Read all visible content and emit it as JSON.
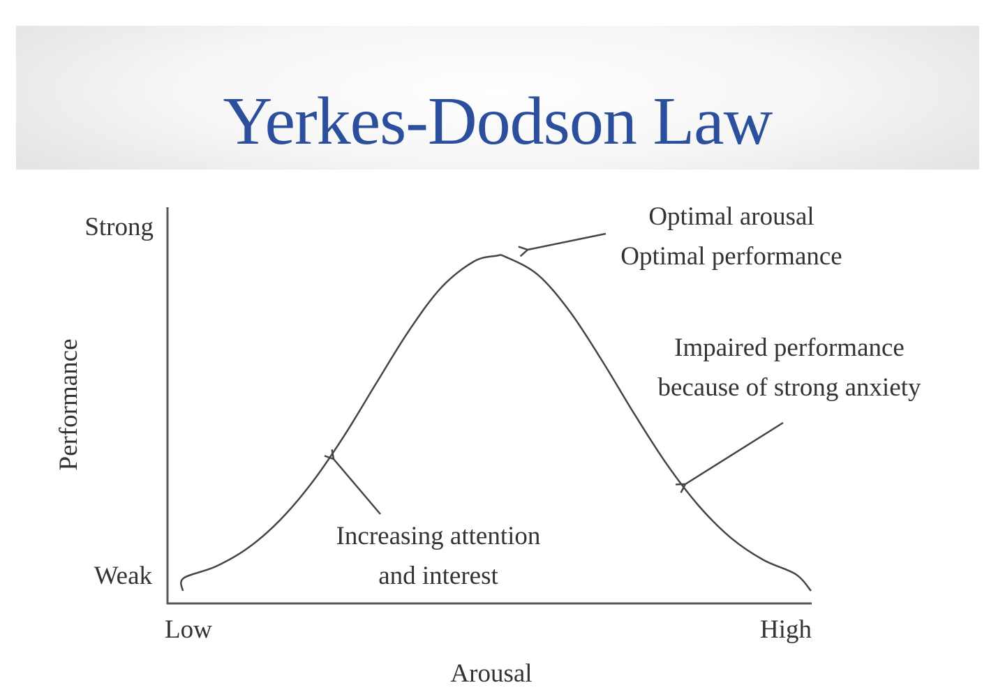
{
  "header": {
    "title": "Yerkes-Dodson Law"
  },
  "colors": {
    "title": "#2b4f9c",
    "curve": "#444444",
    "text": "#333333"
  },
  "chart_data": {
    "type": "line",
    "title": "Yerkes-Dodson Law",
    "xlabel": "Arousal",
    "ylabel": "Performance",
    "x_tick_labels": [
      "Low",
      "High"
    ],
    "y_tick_labels": [
      "Weak",
      "Strong"
    ],
    "xlim": [
      0,
      1
    ],
    "ylim": [
      0,
      1
    ],
    "grid": false,
    "series": [
      {
        "x": [
          0.025,
          0.075,
          0.125,
          0.175,
          0.225,
          0.275,
          0.325,
          0.375,
          0.425,
          0.475,
          0.51,
          0.525,
          0.575,
          0.625,
          0.675,
          0.725,
          0.775,
          0.825,
          0.875,
          0.925,
          0.975
        ],
        "y": [
          0.035,
          0.067,
          0.118,
          0.195,
          0.299,
          0.428,
          0.573,
          0.715,
          0.833,
          0.904,
          0.92,
          0.917,
          0.868,
          0.766,
          0.631,
          0.485,
          0.348,
          0.233,
          0.145,
          0.085,
          0.046
        ]
      }
    ],
    "annotations": [
      {
        "lines": [
          "Optimal arousal",
          "Optimal performance"
        ]
      },
      {
        "lines": [
          "Impaired performance",
          "because of strong anxiety"
        ]
      },
      {
        "lines": [
          "Increasing attention",
          "and interest"
        ]
      }
    ]
  }
}
